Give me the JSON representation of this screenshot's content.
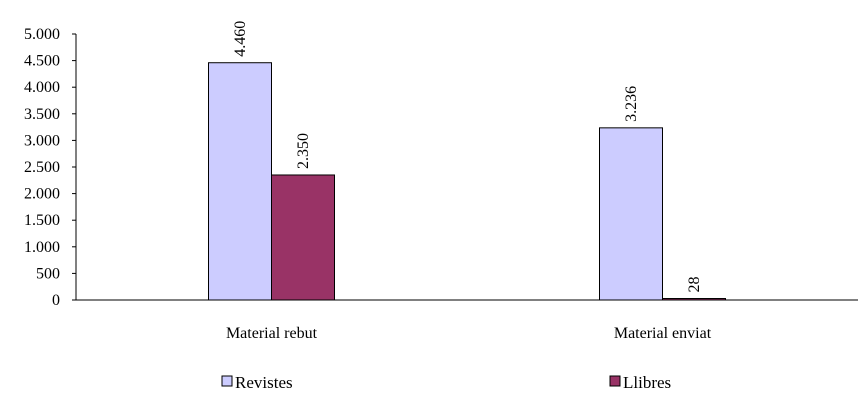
{
  "chart_data": {
    "type": "bar",
    "categories": [
      "Material rebut",
      "Material enviat"
    ],
    "series": [
      {
        "name": "Revistes",
        "values": [
          4460,
          3236
        ],
        "labels": [
          "4.460",
          "3.236"
        ],
        "color": "#ccccff"
      },
      {
        "name": "Llibres",
        "values": [
          2350,
          28
        ],
        "labels": [
          "2.350",
          "28"
        ],
        "color": "#993366"
      }
    ],
    "yticks": [
      0,
      500,
      1000,
      1500,
      2000,
      2500,
      3000,
      3500,
      4000,
      4500,
      5000
    ],
    "ytick_labels": [
      "0",
      "500",
      "1.000",
      "1.500",
      "2.000",
      "2.500",
      "3.000",
      "3.500",
      "4.000",
      "4.500",
      "5.000"
    ],
    "ylim": [
      0,
      5000
    ],
    "grid": false,
    "legend_position": "bottom",
    "title": "",
    "xlabel": "",
    "ylabel": ""
  }
}
